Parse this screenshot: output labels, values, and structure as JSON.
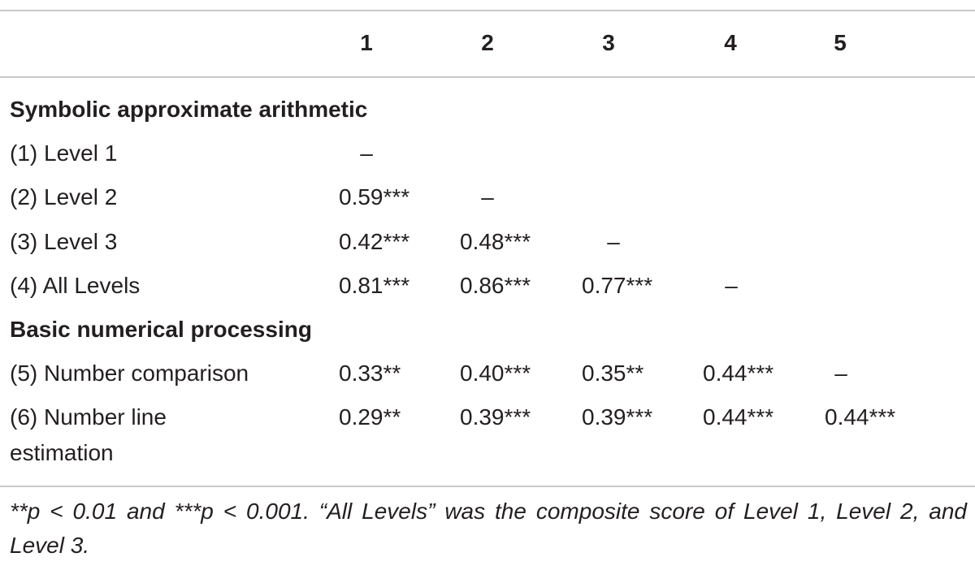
{
  "table": {
    "columns": [
      "1",
      "2",
      "3",
      "4",
      "5"
    ],
    "sections": [
      {
        "title": "Symbolic approximate arithmetic",
        "rows": [
          {
            "label": "(1) Level 1",
            "cells": [
              "–",
              "",
              "",
              "",
              ""
            ]
          },
          {
            "label": "(2) Level 2",
            "cells": [
              "0.59***",
              "–",
              "",
              "",
              ""
            ]
          },
          {
            "label": "(3) Level 3",
            "cells": [
              "0.42***",
              "0.48***",
              "–",
              "",
              ""
            ]
          },
          {
            "label": "(4) All Levels",
            "cells": [
              "0.81***",
              "0.86***",
              "0.77***",
              "–",
              ""
            ]
          }
        ]
      },
      {
        "title": "Basic numerical processing",
        "rows": [
          {
            "label": "(5) Number comparison",
            "cells": [
              "0.33**",
              "0.40***",
              "0.35**",
              "0.44***",
              "–"
            ]
          },
          {
            "label": "(6) Number line estimation",
            "cells": [
              "0.29**",
              "0.39***",
              "0.39***",
              "0.44***",
              "0.44***"
            ]
          }
        ]
      }
    ],
    "footnote": "**p < 0.01 and ***p < 0.001. “All Levels” was the composite score of Level 1, Level 2, and Level 3."
  }
}
